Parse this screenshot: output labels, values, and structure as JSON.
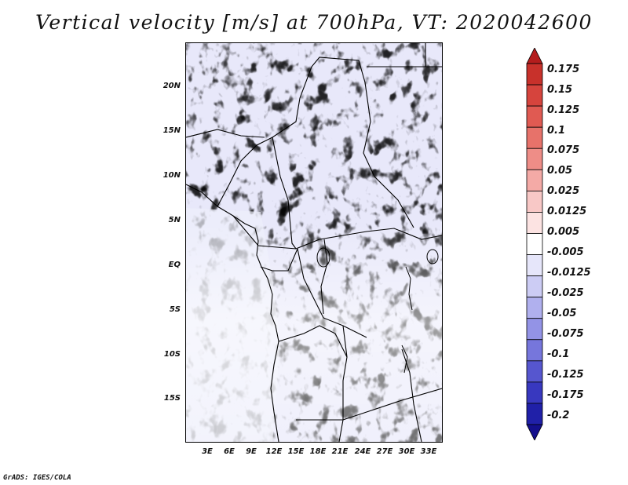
{
  "title": "Vertical velocity [m/s] at 700hPa, VT: 2020042600",
  "footer": "GrADS: IGES/COLA",
  "latitude_labels": [
    "20N",
    "15N",
    "10N",
    "5N",
    "EQ",
    "5S",
    "10S",
    "15S"
  ],
  "longitude_labels": [
    "3E",
    "6E",
    "9E",
    "12E",
    "15E",
    "18E",
    "21E",
    "24E",
    "27E",
    "30E",
    "33E"
  ],
  "colorbar": {
    "levels": [
      "0.175",
      "0.15",
      "0.125",
      "0.1",
      "0.075",
      "0.05",
      "0.025",
      "0.0125",
      "0.005",
      "-0.005",
      "-0.0125",
      "-0.025",
      "-0.05",
      "-0.075",
      "-0.1",
      "-0.125",
      "-0.175",
      "-0.2"
    ],
    "colors": [
      "#b41d1d",
      "#c8312b",
      "#d6443d",
      "#e05a52",
      "#e7726a",
      "#ee8d87",
      "#f4aaa6",
      "#f8c8c6",
      "#fce3e2",
      "#ffffff",
      "#e6e6fa",
      "#ccccf4",
      "#b0b0ee",
      "#9393e6",
      "#7676dc",
      "#5656cf",
      "#3838bf",
      "#2020a8",
      "#140f8c"
    ]
  }
}
